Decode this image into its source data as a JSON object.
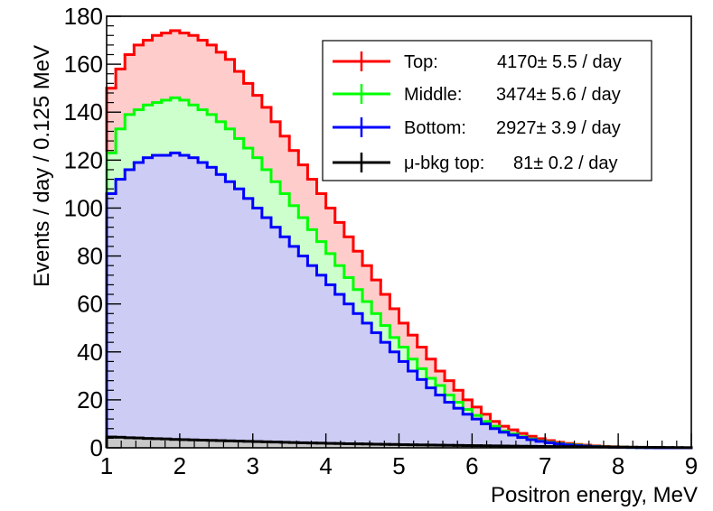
{
  "chart_data": {
    "type": "area",
    "title": "",
    "xlabel": "Positron energy, MeV",
    "ylabel": "Events / day / 0.125 MeV",
    "xlim": [
      1,
      9
    ],
    "ylim": [
      0,
      180
    ],
    "bin_width": 0.125,
    "x_ticks": [
      "1",
      "2",
      "3",
      "4",
      "5",
      "6",
      "7",
      "8",
      "9"
    ],
    "y_ticks": [
      "0",
      "20",
      "40",
      "60",
      "80",
      "100",
      "120",
      "140",
      "160",
      "180"
    ],
    "legend_position": "top-right",
    "series": [
      {
        "name": "Top",
        "legend_label": "Top:",
        "legend_value": "4170± 5.5 / day",
        "color": "#ff0000",
        "fill": "#ffcccc",
        "values": [
          150,
          158,
          164,
          168,
          170,
          172,
          173,
          174,
          173,
          172,
          170,
          168,
          165,
          162,
          157,
          152,
          147,
          142,
          136,
          130,
          124,
          118,
          112,
          106,
          100,
          94,
          88,
          82,
          76,
          70,
          64,
          58,
          52,
          47,
          42,
          37,
          32,
          28,
          24,
          20,
          17,
          14,
          11,
          9,
          7.5,
          6,
          4.8,
          3.8,
          3,
          2.3,
          1.8,
          1.4,
          1.1,
          0.8,
          0.6,
          0.45,
          0.3,
          0.2,
          0.15,
          0.1,
          0.05,
          0,
          0,
          0
        ]
      },
      {
        "name": "Middle",
        "legend_label": "Middle:",
        "legend_value": "3474± 5.6 / day",
        "color": "#00ff00",
        "fill": "#ccffcc",
        "values": [
          123,
          133,
          139,
          141,
          143,
          144,
          145,
          146,
          145,
          143,
          141,
          139,
          136,
          133,
          129,
          125,
          121,
          116,
          111,
          106,
          101,
          96,
          91,
          86,
          81,
          76,
          71,
          66,
          61,
          56,
          51,
          46,
          42,
          37,
          33,
          29,
          26,
          22,
          19,
          16,
          13.5,
          11,
          9,
          7,
          5.8,
          4.6,
          3.7,
          2.9,
          2.3,
          1.8,
          1.4,
          1.1,
          0.8,
          0.6,
          0.45,
          0.35,
          0.25,
          0.15,
          0.1,
          0.05,
          0,
          0,
          0,
          0
        ]
      },
      {
        "name": "Bottom",
        "legend_label": "Bottom:",
        "legend_value": "2927± 3.9 / day",
        "color": "#0000ff",
        "fill": "#ccccf5",
        "values": [
          106,
          112,
          116,
          119,
          121,
          122,
          122,
          123,
          122,
          121,
          119,
          117,
          114,
          111,
          108,
          104,
          100,
          96,
          92,
          88,
          84,
          80,
          76,
          72,
          68,
          64,
          60,
          56,
          52,
          48,
          44,
          40,
          36,
          32,
          28.5,
          25,
          22,
          19,
          16.5,
          14,
          12,
          10,
          8,
          6.5,
          5.3,
          4.3,
          3.4,
          2.7,
          2.1,
          1.6,
          1.2,
          0.9,
          0.7,
          0.5,
          0.35,
          0.25,
          0.18,
          0.12,
          0.08,
          0.04,
          0,
          0,
          0,
          0
        ]
      },
      {
        "name": "μ-bkg top",
        "legend_label": "μ-bkg top:",
        "legend_value": "81± 0.2 / day",
        "color": "#000000",
        "fill": "#c8c8c8",
        "values": [
          4.5,
          4.4,
          4.2,
          4.1,
          3.9,
          3.8,
          3.7,
          3.5,
          3.4,
          3.3,
          3.2,
          3.1,
          3,
          2.9,
          2.8,
          2.7,
          2.6,
          2.5,
          2.4,
          2.3,
          2.2,
          2.1,
          2,
          1.95,
          1.85,
          1.8,
          1.7,
          1.65,
          1.6,
          1.5,
          1.45,
          1.4,
          1.3,
          1.25,
          1.2,
          1.15,
          1.1,
          1.05,
          1,
          0.95,
          0.9,
          0.85,
          0.8,
          0.75,
          0.7,
          0.66,
          0.62,
          0.58,
          0.54,
          0.5,
          0.47,
          0.44,
          0.41,
          0.38,
          0.35,
          0.32,
          0.29,
          0.26,
          0.23,
          0.2,
          0.17,
          0.14,
          0.11,
          0.08
        ]
      }
    ]
  }
}
